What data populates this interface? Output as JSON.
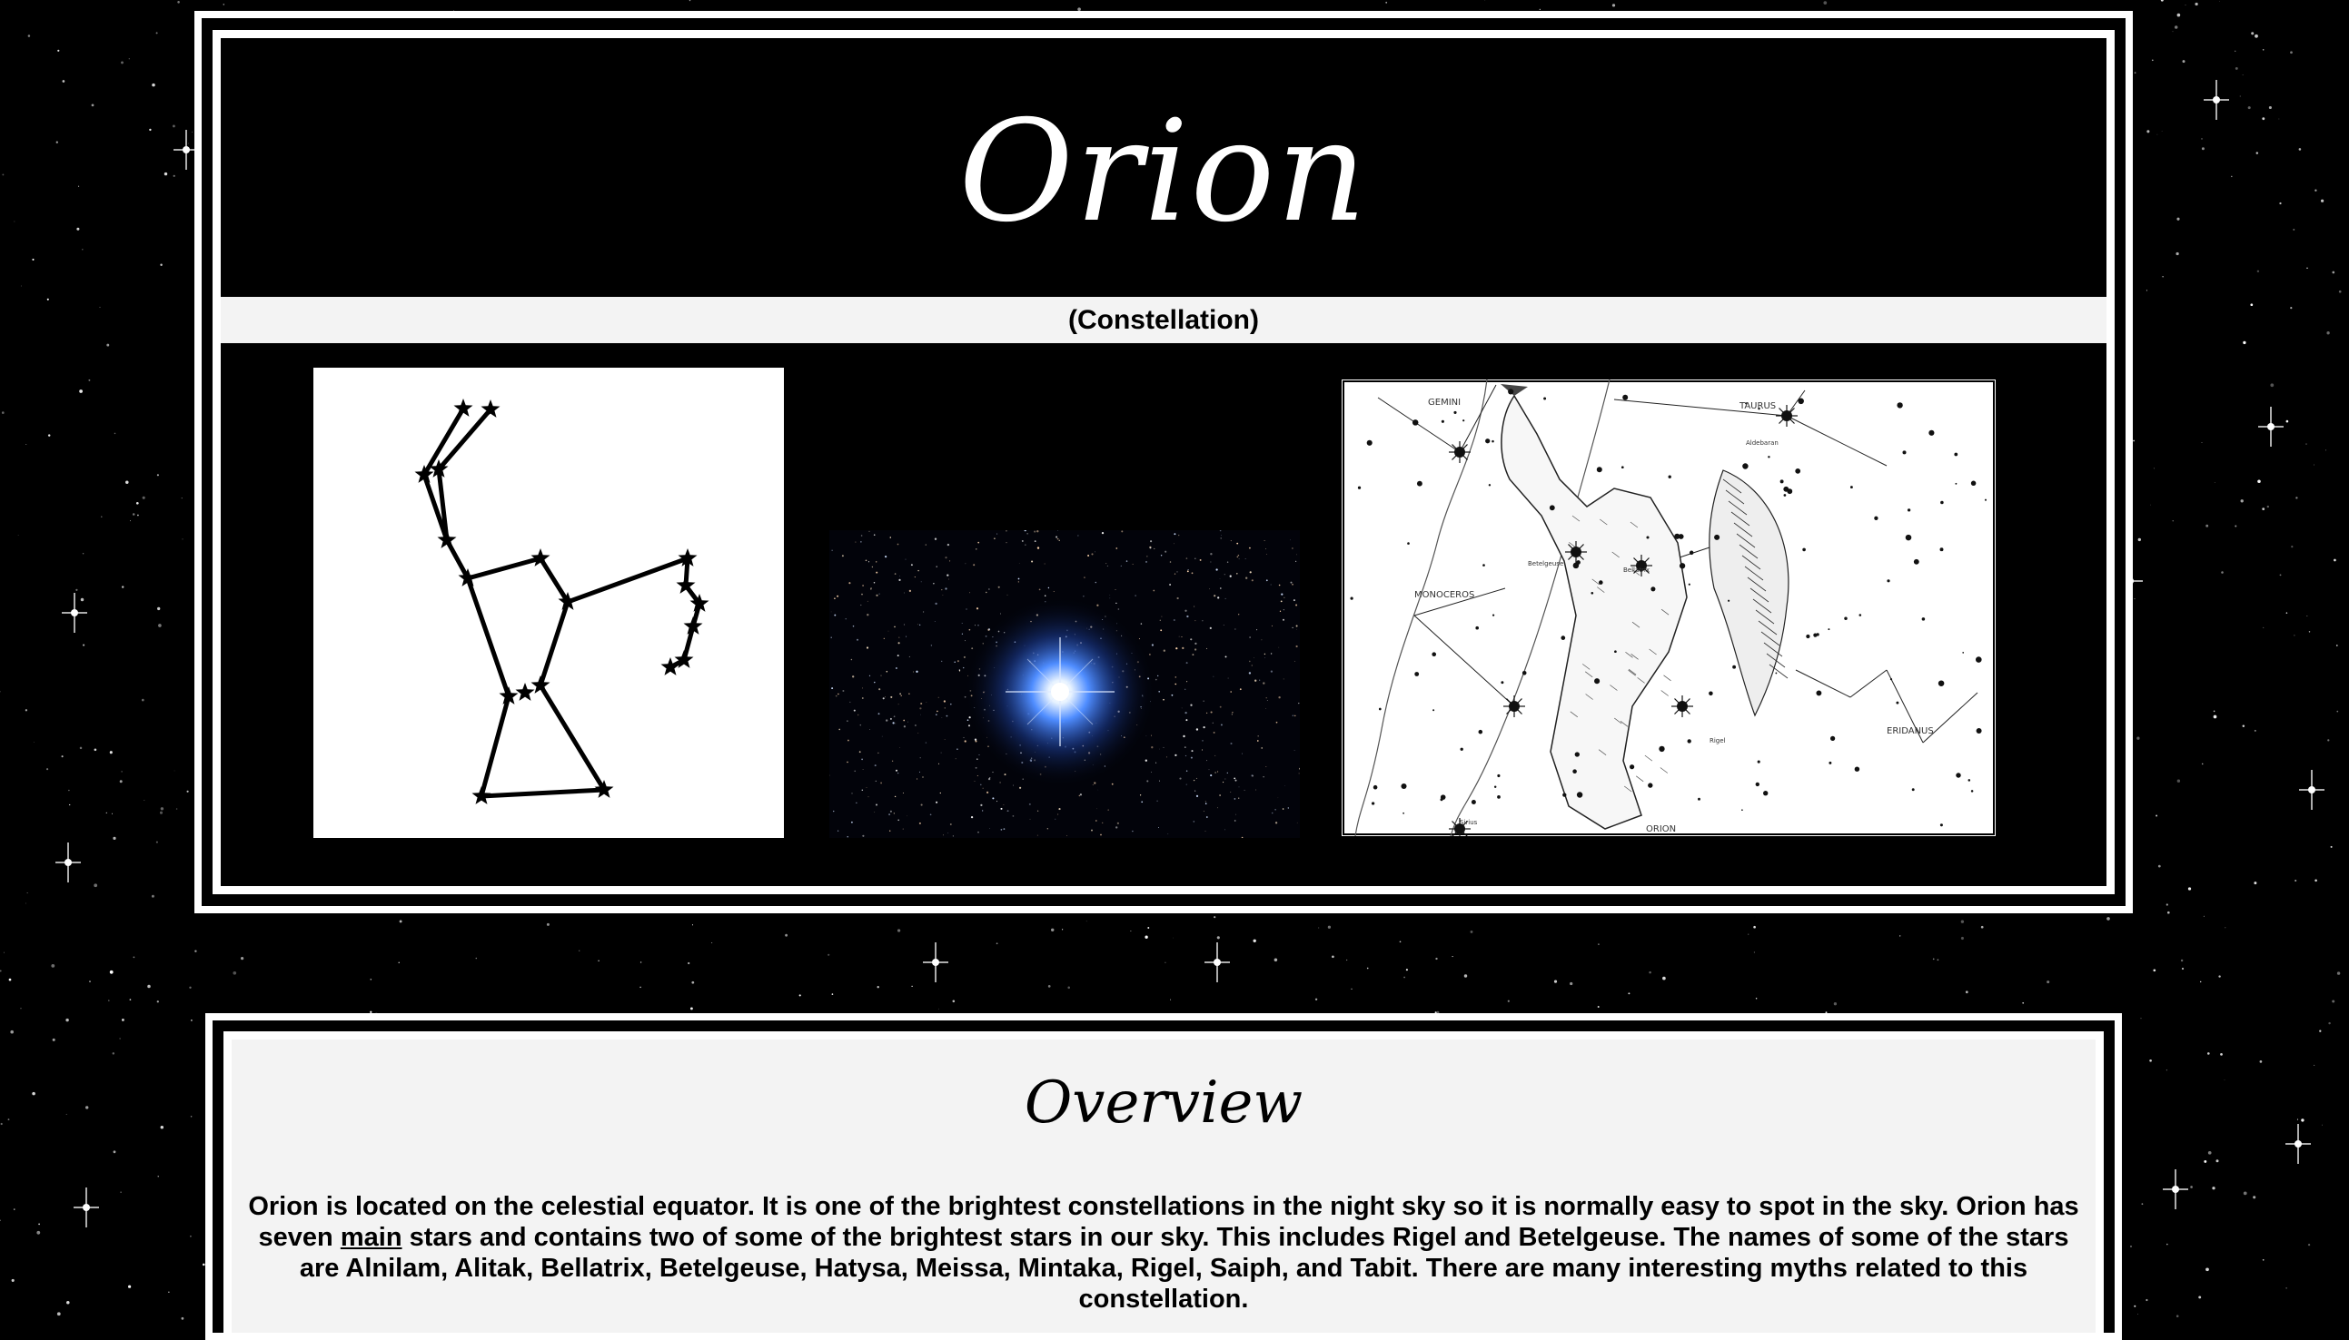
{
  "header": {
    "title": "Orion",
    "subtitle": "(Constellation)"
  },
  "images": [
    {
      "name": "orion-stick-figure-diagram"
    },
    {
      "name": "bright-blue-star-photo"
    },
    {
      "name": "orion-star-atlas-illustration",
      "labels": [
        "GEMINI",
        "TAURUS",
        "Aldebaran",
        "MONOCEROS",
        "Betelgeuse",
        "Bellatrix",
        "Rigel",
        "ERIDANUS",
        "Sirius",
        "ORION"
      ]
    }
  ],
  "overview": {
    "heading": "Overview",
    "text_before": "Orion is located on the celestial equator. It is one of the brightest constellations in the night sky so it is normally easy to spot in the sky. Orion has seven ",
    "text_underlined": "main",
    "text_after": " stars and contains two of some of the brightest stars in our sky. This includes Rigel and Betelgeuse. The names of some of the stars are Alnilam, Alitak, Bellatrix, Betelgeuse, Hatysa, Meissa, Mintaka, Rigel, Saiph, and Tabit. There are many interesting myths related to this constellation."
  },
  "colors": {
    "background": "#000000",
    "frame": "#ffffff",
    "bar": "#f3f3f3",
    "glow_blue": "#3a7bff"
  }
}
